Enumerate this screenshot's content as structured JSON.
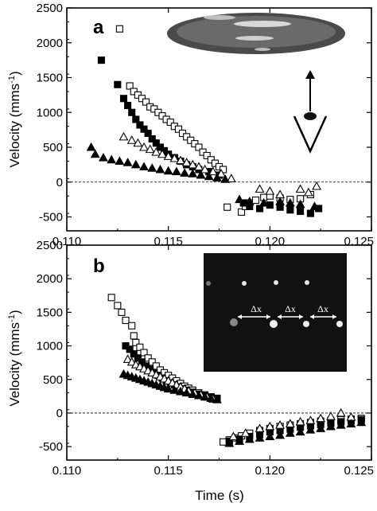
{
  "chart_data": [
    {
      "panel_label": "a",
      "type": "scatter",
      "ylabel": "Velocity (mms",
      "ylabel_sup": "-1",
      "ylabel_close": ")",
      "xlabel": "",
      "xlim": [
        0.11,
        0.125
      ],
      "ylim": [
        -700,
        2500
      ],
      "xticks": [
        "0.110",
        "0.115",
        "0.120",
        "0.125"
      ],
      "yticks": [
        "2500",
        "2000",
        "1500",
        "1000",
        "500",
        "0",
        "-500"
      ],
      "zero_line": "dashed",
      "inset": "photograph of a flattened drop viewed from the side, with an arrow and an eye symbol indicating viewing direction",
      "series": [
        {
          "marker": "open-square",
          "points": [
            [
              0.1126,
              2200
            ],
            [
              0.1131,
              1380
            ],
            [
              0.1133,
              1300
            ],
            [
              0.1135,
              1250
            ],
            [
              0.1137,
              1200
            ],
            [
              0.1139,
              1150
            ],
            [
              0.1141,
              1080
            ],
            [
              0.1143,
              1050
            ],
            [
              0.1145,
              1000
            ],
            [
              0.1147,
              950
            ],
            [
              0.1149,
              900
            ],
            [
              0.1151,
              860
            ],
            [
              0.1153,
              800
            ],
            [
              0.1155,
              760
            ],
            [
              0.1157,
              700
            ],
            [
              0.1159,
              650
            ],
            [
              0.1161,
              600
            ],
            [
              0.1163,
              550
            ],
            [
              0.1165,
              500
            ],
            [
              0.1167,
              430
            ],
            [
              0.1169,
              380
            ],
            [
              0.1171,
              320
            ],
            [
              0.1173,
              270
            ],
            [
              0.1175,
              220
            ],
            [
              0.1177,
              180
            ],
            [
              0.1179,
              -360
            ],
            [
              0.1186,
              -430
            ],
            [
              0.1188,
              -350
            ],
            [
              0.119,
              -300
            ],
            [
              0.1193,
              -260
            ],
            [
              0.1197,
              -220
            ],
            [
              0.12,
              -200
            ],
            [
              0.1205,
              -230
            ],
            [
              0.121,
              -250
            ],
            [
              0.1215,
              -240
            ],
            [
              0.122,
              -180
            ]
          ]
        },
        {
          "marker": "filled-square",
          "points": [
            [
              0.1117,
              1750
            ],
            [
              0.1125,
              1400
            ],
            [
              0.1128,
              1200
            ],
            [
              0.113,
              1100
            ],
            [
              0.1132,
              1000
            ],
            [
              0.1134,
              900
            ],
            [
              0.1136,
              820
            ],
            [
              0.1138,
              760
            ],
            [
              0.114,
              700
            ],
            [
              0.1142,
              620
            ],
            [
              0.1144,
              560
            ],
            [
              0.1146,
              500
            ],
            [
              0.1148,
              450
            ],
            [
              0.115,
              400
            ],
            [
              0.1153,
              350
            ],
            [
              0.1156,
              300
            ],
            [
              0.1159,
              250
            ],
            [
              0.1162,
              220
            ],
            [
              0.1165,
              180
            ],
            [
              0.117,
              150
            ],
            [
              0.1175,
              100
            ],
            [
              0.1187,
              -300
            ],
            [
              0.119,
              -350
            ],
            [
              0.1195,
              -380
            ],
            [
              0.12,
              -330
            ],
            [
              0.1205,
              -360
            ],
            [
              0.121,
              -400
            ],
            [
              0.1215,
              -420
            ],
            [
              0.122,
              -450
            ],
            [
              0.1224,
              -380
            ]
          ]
        },
        {
          "marker": "open-triangle",
          "points": [
            [
              0.1128,
              650
            ],
            [
              0.1132,
              600
            ],
            [
              0.1135,
              560
            ],
            [
              0.1138,
              500
            ],
            [
              0.1141,
              470
            ],
            [
              0.1144,
              430
            ],
            [
              0.1147,
              400
            ],
            [
              0.115,
              370
            ],
            [
              0.1153,
              340
            ],
            [
              0.1156,
              310
            ],
            [
              0.1159,
              280
            ],
            [
              0.1162,
              250
            ],
            [
              0.1165,
              220
            ],
            [
              0.1168,
              180
            ],
            [
              0.1172,
              150
            ],
            [
              0.1176,
              120
            ],
            [
              0.1181,
              50
            ],
            [
              0.1195,
              -100
            ],
            [
              0.12,
              -130
            ],
            [
              0.1205,
              -180
            ],
            [
              0.1215,
              -100
            ],
            [
              0.1219,
              -150
            ],
            [
              0.1223,
              -60
            ]
          ]
        },
        {
          "marker": "filled-triangle",
          "points": [
            [
              0.1112,
              500
            ],
            [
              0.1114,
              400
            ],
            [
              0.1118,
              350
            ],
            [
              0.1122,
              320
            ],
            [
              0.1126,
              300
            ],
            [
              0.113,
              280
            ],
            [
              0.1134,
              250
            ],
            [
              0.1138,
              220
            ],
            [
              0.1142,
              200
            ],
            [
              0.1146,
              180
            ],
            [
              0.115,
              160
            ],
            [
              0.1154,
              150
            ],
            [
              0.1158,
              130
            ],
            [
              0.1162,
              120
            ],
            [
              0.1166,
              100
            ],
            [
              0.117,
              80
            ],
            [
              0.1174,
              60
            ],
            [
              0.1178,
              40
            ],
            [
              0.1185,
              -250
            ],
            [
              0.119,
              -280
            ],
            [
              0.1197,
              -300
            ],
            [
              0.1205,
              -280
            ],
            [
              0.121,
              -300
            ],
            [
              0.1215,
              -320
            ],
            [
              0.1222,
              -350
            ]
          ]
        }
      ]
    },
    {
      "panel_label": "b",
      "type": "scatter",
      "ylabel": "Velocity (mms",
      "ylabel_sup": "-1",
      "ylabel_close": ")",
      "xlabel": "Time (s)",
      "xlim": [
        0.11,
        0.125
      ],
      "ylim": [
        -700,
        2500
      ],
      "xticks": [
        "0.110",
        "0.115",
        "0.120",
        "0.125"
      ],
      "yticks": [
        "2500",
        "2000",
        "1500",
        "1000",
        "500",
        "0",
        "-500"
      ],
      "zero_line": "dashed",
      "inset": {
        "description": "dark image with bright particles spaced evenly",
        "labels": [
          "Δx",
          "Δx",
          "Δx"
        ]
      },
      "series": [
        {
          "marker": "open-square",
          "points": [
            [
              0.1122,
              1720
            ],
            [
              0.1125,
              1600
            ],
            [
              0.1127,
              1500
            ],
            [
              0.1129,
              1380
            ],
            [
              0.1132,
              1300
            ],
            [
              0.1133,
              1150
            ],
            [
              0.1134,
              1050
            ],
            [
              0.1136,
              980
            ],
            [
              0.1138,
              900
            ],
            [
              0.114,
              820
            ],
            [
              0.1142,
              760
            ],
            [
              0.1144,
              700
            ],
            [
              0.1146,
              640
            ],
            [
              0.1148,
              600
            ],
            [
              0.115,
              560
            ],
            [
              0.1152,
              520
            ],
            [
              0.1154,
              480
            ],
            [
              0.1156,
              440
            ],
            [
              0.1158,
              400
            ],
            [
              0.116,
              370
            ],
            [
              0.1162,
              340
            ],
            [
              0.1165,
              300
            ],
            [
              0.1168,
              270
            ],
            [
              0.1171,
              240
            ],
            [
              0.1174,
              210
            ],
            [
              0.1177,
              -430
            ],
            [
              0.118,
              -400
            ],
            [
              0.1183,
              -370
            ],
            [
              0.1186,
              -340
            ],
            [
              0.119,
              -300
            ],
            [
              0.1195,
              -260
            ],
            [
              0.12,
              -230
            ],
            [
              0.1205,
              -200
            ],
            [
              0.121,
              -180
            ],
            [
              0.1215,
              -160
            ],
            [
              0.122,
              -140
            ],
            [
              0.1225,
              -120
            ],
            [
              0.123,
              -110
            ],
            [
              0.1235,
              -100
            ],
            [
              0.124,
              -90
            ],
            [
              0.1245,
              -80
            ]
          ]
        },
        {
          "marker": "filled-square",
          "points": [
            [
              0.1129,
              1000
            ],
            [
              0.1131,
              950
            ],
            [
              0.1133,
              880
            ],
            [
              0.1135,
              820
            ],
            [
              0.1137,
              760
            ],
            [
              0.1139,
              700
            ],
            [
              0.1141,
              650
            ],
            [
              0.1143,
              600
            ],
            [
              0.1145,
              560
            ],
            [
              0.1147,
              520
            ],
            [
              0.1149,
              480
            ],
            [
              0.1151,
              450
            ],
            [
              0.1153,
              420
            ],
            [
              0.1155,
              390
            ],
            [
              0.1157,
              360
            ],
            [
              0.1159,
              340
            ],
            [
              0.1162,
              310
            ],
            [
              0.1165,
              280
            ],
            [
              0.1168,
              260
            ],
            [
              0.1171,
              240
            ],
            [
              0.1174,
              220
            ],
            [
              0.118,
              -420
            ],
            [
              0.1185,
              -390
            ],
            [
              0.119,
              -350
            ],
            [
              0.1195,
              -320
            ],
            [
              0.12,
              -280
            ],
            [
              0.1205,
              -260
            ],
            [
              0.121,
              -240
            ],
            [
              0.1215,
              -210
            ],
            [
              0.122,
              -190
            ],
            [
              0.1225,
              -170
            ],
            [
              0.123,
              -150
            ],
            [
              0.1235,
              -130
            ],
            [
              0.124,
              -110
            ],
            [
              0.1245,
              -100
            ]
          ]
        },
        {
          "marker": "open-triangle",
          "points": [
            [
              0.113,
              800
            ],
            [
              0.1132,
              760
            ],
            [
              0.1134,
              720
            ],
            [
              0.1136,
              690
            ],
            [
              0.1138,
              660
            ],
            [
              0.114,
              630
            ],
            [
              0.1142,
              600
            ],
            [
              0.1144,
              570
            ],
            [
              0.1146,
              540
            ],
            [
              0.1148,
              510
            ],
            [
              0.115,
              480
            ],
            [
              0.1152,
              450
            ],
            [
              0.1154,
              420
            ],
            [
              0.1156,
              390
            ],
            [
              0.1158,
              360
            ],
            [
              0.116,
              330
            ],
            [
              0.1163,
              300
            ],
            [
              0.1166,
              270
            ],
            [
              0.1169,
              240
            ],
            [
              0.1172,
              210
            ],
            [
              0.1182,
              -350
            ],
            [
              0.1188,
              -300
            ],
            [
              0.1195,
              -230
            ],
            [
              0.12,
              -200
            ],
            [
              0.1205,
              -180
            ],
            [
              0.121,
              -160
            ],
            [
              0.1215,
              -130
            ],
            [
              0.122,
              -110
            ],
            [
              0.1225,
              -80
            ],
            [
              0.123,
              -50
            ],
            [
              0.1235,
              0
            ],
            [
              0.124,
              -60
            ]
          ]
        },
        {
          "marker": "filled-triangle",
          "points": [
            [
              0.1128,
              580
            ],
            [
              0.113,
              560
            ],
            [
              0.1132,
              540
            ],
            [
              0.1134,
              520
            ],
            [
              0.1136,
              500
            ],
            [
              0.1138,
              480
            ],
            [
              0.114,
              460
            ],
            [
              0.1142,
              440
            ],
            [
              0.1144,
              420
            ],
            [
              0.1146,
              400
            ],
            [
              0.1148,
              380
            ],
            [
              0.115,
              360
            ],
            [
              0.1153,
              340
            ],
            [
              0.1156,
              320
            ],
            [
              0.1159,
              300
            ],
            [
              0.1162,
              280
            ],
            [
              0.1165,
              260
            ],
            [
              0.1168,
              240
            ],
            [
              0.1171,
              220
            ],
            [
              0.1174,
              200
            ],
            [
              0.118,
              -450
            ],
            [
              0.1185,
              -420
            ],
            [
              0.119,
              -390
            ],
            [
              0.1195,
              -370
            ],
            [
              0.12,
              -350
            ],
            [
              0.1205,
              -330
            ],
            [
              0.121,
              -300
            ],
            [
              0.1215,
              -280
            ],
            [
              0.122,
              -250
            ],
            [
              0.1225,
              -230
            ],
            [
              0.123,
              -200
            ],
            [
              0.1235,
              -180
            ],
            [
              0.124,
              -160
            ],
            [
              0.1245,
              -140
            ]
          ]
        }
      ]
    }
  ]
}
